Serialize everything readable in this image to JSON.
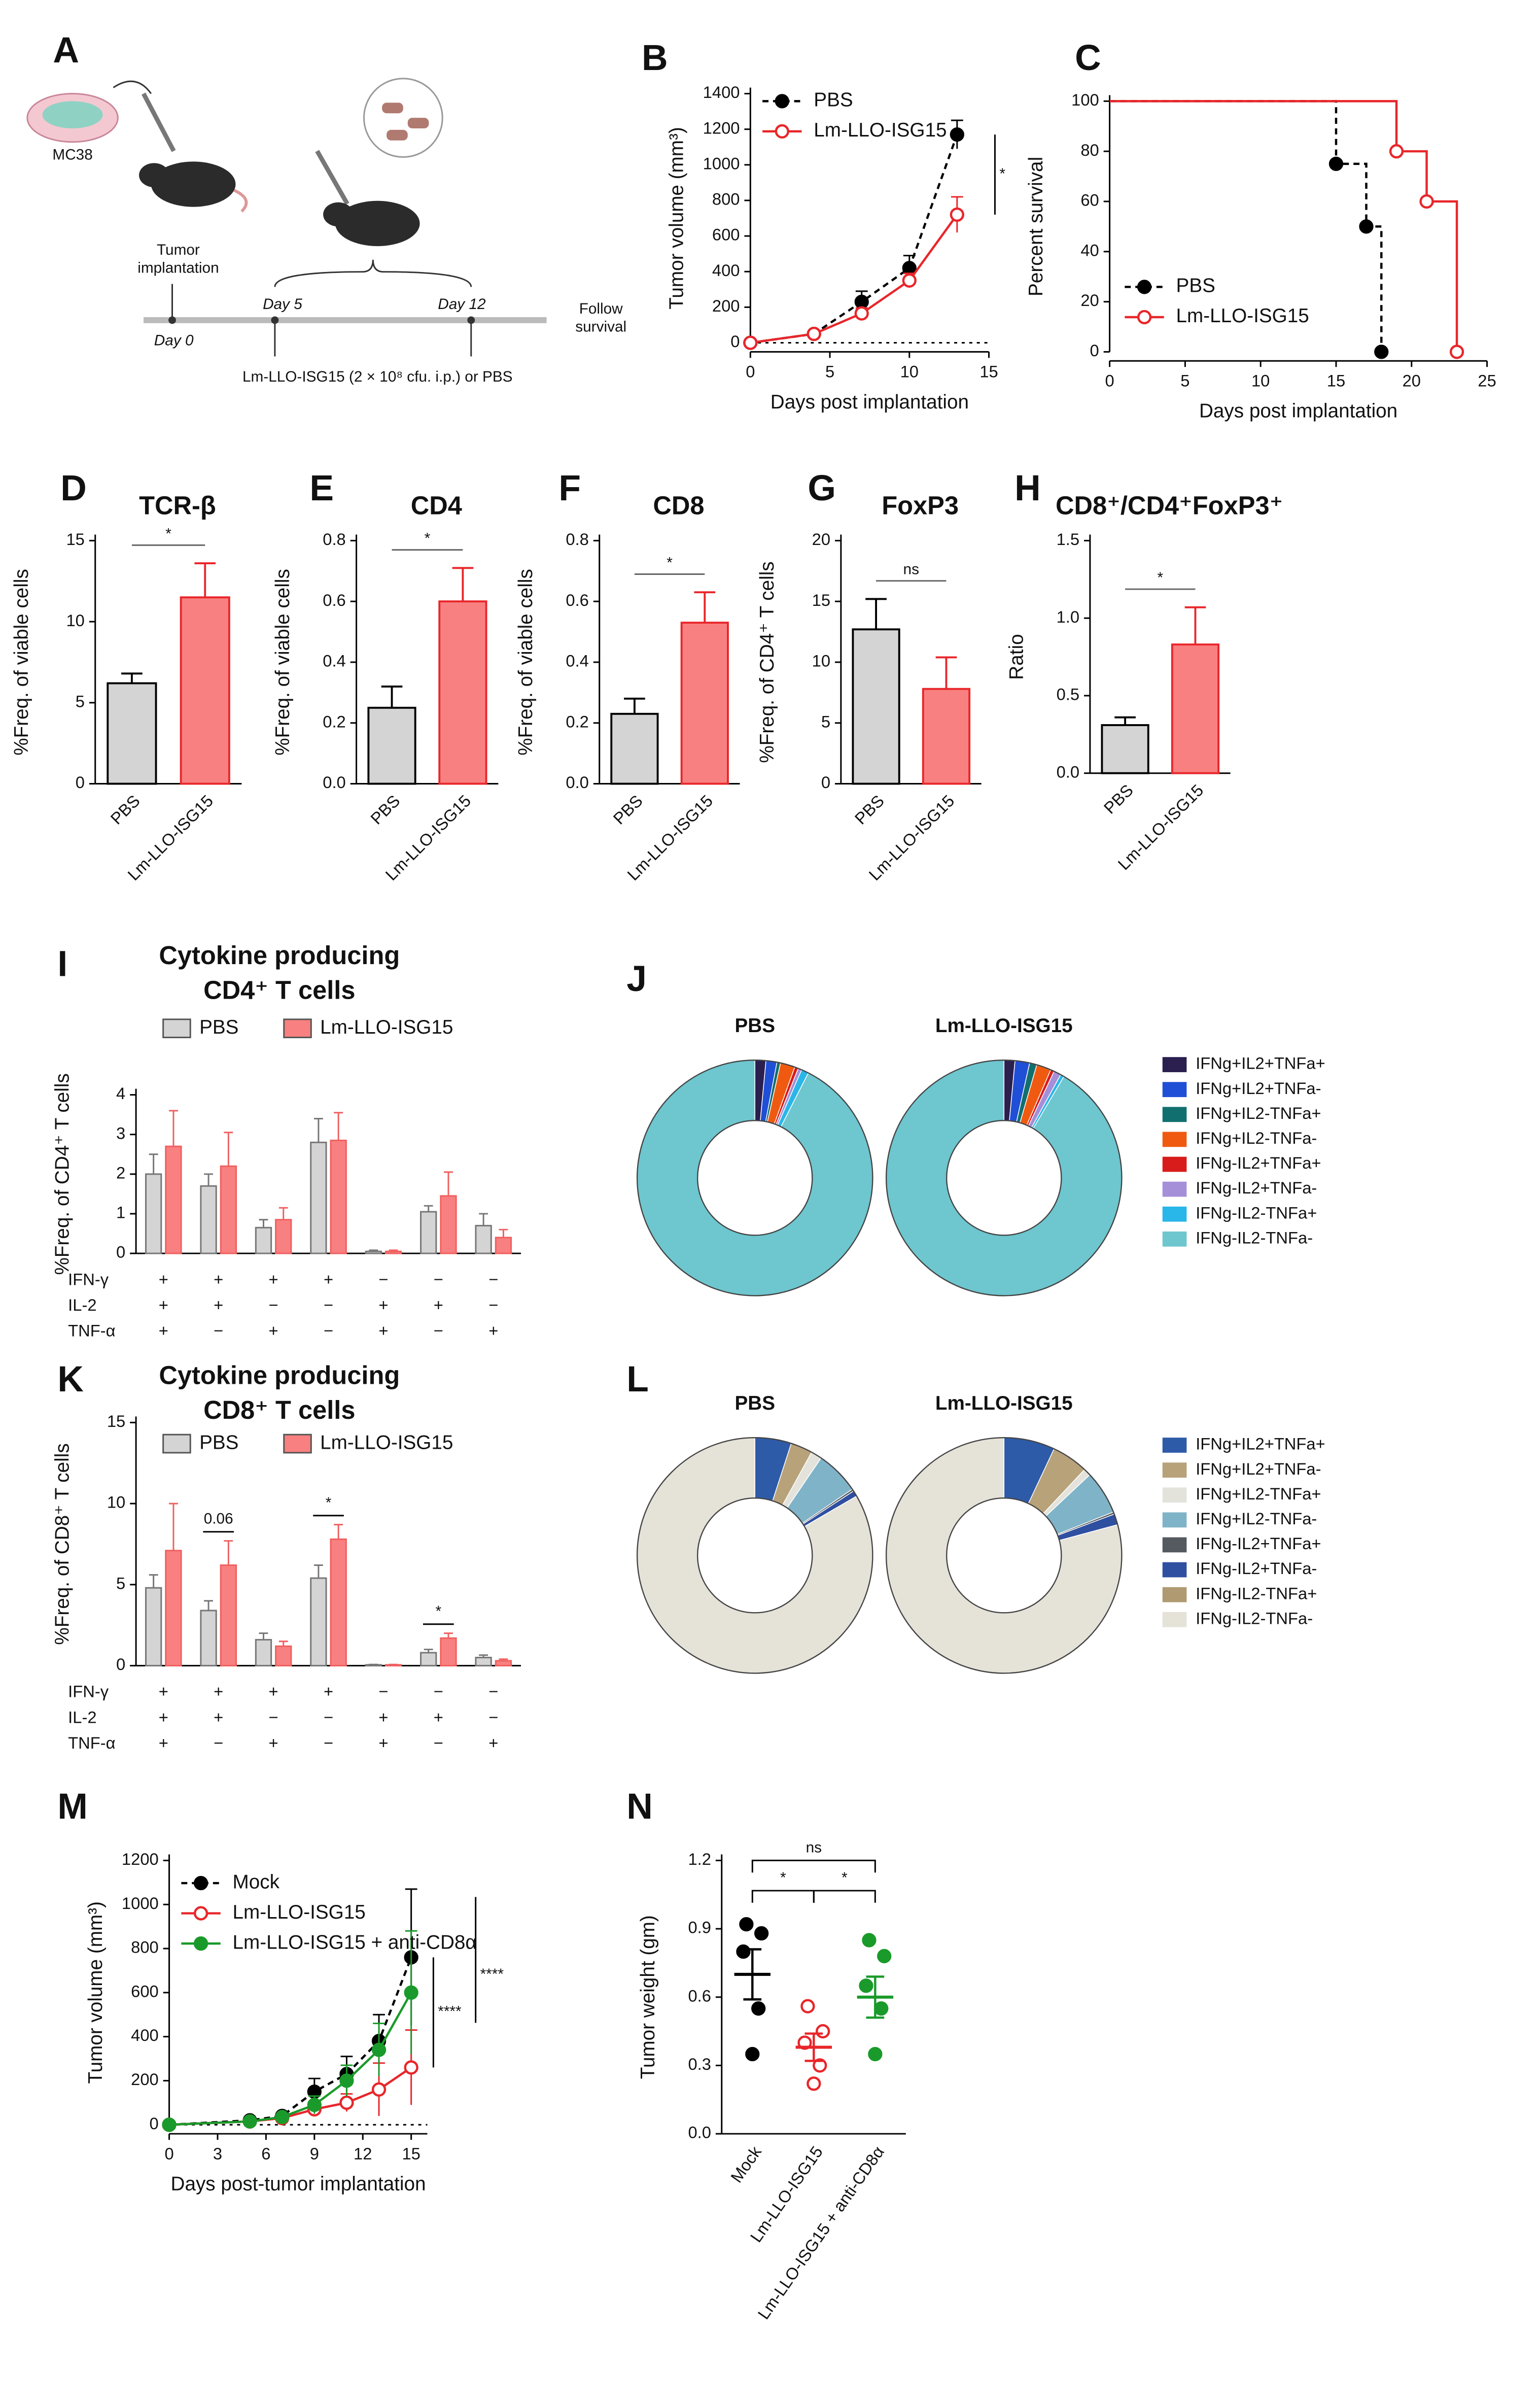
{
  "schematic": {
    "panel": "A",
    "cell_line": "MC38",
    "implant_label": [
      "Tumor",
      "implantation"
    ],
    "timepoints": [
      "Day 0",
      "Day 5",
      "Day 12"
    ],
    "follow": [
      "Follow",
      "survival"
    ],
    "treatment": "Lm-LLO-ISG15 (2 × 10⁸ cfu. i.p.) or PBS"
  },
  "chart_data": [
    {
      "type": "line",
      "panel": "B",
      "xlabel": "Days post implantation",
      "ylabel": "Tumor volume (mm³)",
      "x": [
        0,
        4,
        7,
        10,
        13
      ],
      "xlim": [
        0,
        15
      ],
      "xticks": [
        0,
        5,
        10,
        15
      ],
      "ylim": [
        0,
        1400
      ],
      "yticks": [
        0,
        200,
        400,
        600,
        800,
        1000,
        1200,
        1400
      ],
      "series": [
        {
          "name": "PBS",
          "color": "#000000",
          "line_style": "dashed",
          "marker_fill": "filled",
          "values": [
            0,
            50,
            230,
            420,
            1170
          ],
          "errors": [
            10,
            10,
            60,
            70,
            80
          ]
        },
        {
          "name": "Lm-LLO-ISG15",
          "color": "#e8262a",
          "line_style": "solid",
          "marker_fill": "open",
          "values": [
            0,
            50,
            165,
            350,
            720
          ],
          "errors": [
            10,
            10,
            30,
            40,
            100
          ]
        }
      ],
      "significance": [
        "*"
      ]
    },
    {
      "type": "step",
      "panel": "C",
      "xlabel": "Days post implantation",
      "ylabel": "Percent survival",
      "xlim": [
        0,
        25
      ],
      "xticks": [
        0,
        5,
        10,
        15,
        20,
        25
      ],
      "ylim": [
        0,
        100
      ],
      "yticks": [
        0,
        20,
        40,
        60,
        80,
        100
      ],
      "series": [
        {
          "name": "PBS",
          "color": "#000000",
          "line_style": "dashed",
          "marker_fill": "filled",
          "x": [
            0,
            15,
            17,
            18
          ],
          "values": [
            100,
            75,
            50,
            0
          ]
        },
        {
          "name": "Lm-LLO-ISG15",
          "color": "#e8262a",
          "line_style": "solid",
          "marker_fill": "open",
          "x": [
            0,
            19,
            21,
            23
          ],
          "values": [
            100,
            80,
            60,
            0
          ]
        }
      ]
    },
    {
      "type": "bar",
      "panel": "D",
      "title": "TCR-β",
      "ylabel": "%Freq. of viable cells",
      "categories": [
        "PBS",
        "Lm-LLO-ISG15"
      ],
      "values": [
        6.2,
        11.5
      ],
      "errors": [
        0.6,
        2.1
      ],
      "colors": [
        "#d4d4d4",
        "#f98080"
      ],
      "ylim": [
        0,
        15
      ],
      "yticks": [
        0,
        5,
        10,
        15
      ],
      "significance": "*"
    },
    {
      "type": "bar",
      "panel": "E",
      "title": "CD4",
      "ylabel": "%Freq. of viable cells",
      "categories": [
        "PBS",
        "Lm-LLO-ISG15"
      ],
      "values": [
        0.25,
        0.6
      ],
      "errors": [
        0.07,
        0.11
      ],
      "colors": [
        "#d4d4d4",
        "#f98080"
      ],
      "ylim": [
        0,
        0.8
      ],
      "yticks": [
        {
          "value": 0,
          "label": "0.0"
        },
        0.2,
        0.4,
        0.6,
        0.8
      ],
      "significance": "*"
    },
    {
      "type": "bar",
      "panel": "F",
      "title": "CD8",
      "ylabel": "%Freq. of viable cells",
      "categories": [
        "PBS",
        "Lm-LLO-ISG15"
      ],
      "values": [
        0.23,
        0.53
      ],
      "errors": [
        0.05,
        0.1
      ],
      "colors": [
        "#d4d4d4",
        "#f98080"
      ],
      "ylim": [
        0,
        0.8
      ],
      "yticks": [
        {
          "value": 0,
          "label": "0.0"
        },
        0.2,
        0.4,
        0.6,
        0.8
      ],
      "significance": "*"
    },
    {
      "type": "bar",
      "panel": "G",
      "title": "FoxP3",
      "ylabel": "%Freq. of CD4⁺ T cells",
      "categories": [
        "PBS",
        "Lm-LLO-ISG15"
      ],
      "values": [
        12.7,
        7.8
      ],
      "errors": [
        2.5,
        2.6
      ],
      "colors": [
        "#d4d4d4",
        "#f98080"
      ],
      "ylim": [
        0,
        20
      ],
      "yticks": [
        0,
        5,
        10,
        15,
        20
      ],
      "significance": "ns"
    },
    {
      "type": "bar",
      "panel": "H",
      "title": "CD8⁺/CD4⁺FoxP3⁺",
      "ylabel": "Ratio",
      "categories": [
        "PBS",
        "Lm-LLO-ISG15"
      ],
      "values": [
        0.31,
        0.83
      ],
      "errors": [
        0.05,
        0.24
      ],
      "colors": [
        "#d4d4d4",
        "#f98080"
      ],
      "ylim": [
        0,
        1.5
      ],
      "yticks": [
        {
          "value": 0,
          "label": "0.0"
        },
        0.5,
        {
          "value": 1,
          "label": "1.0"
        },
        1.5
      ],
      "significance": "*"
    },
    {
      "type": "grouped_bar",
      "panel": "I",
      "title": [
        "Cytokine producing",
        "CD4⁺ T cells"
      ],
      "ylabel": "%Freq. of CD4⁺ T cells",
      "ylim": [
        0,
        4
      ],
      "yticks": [
        0,
        1,
        2,
        3,
        4
      ],
      "rows": [
        {
          "name": "IFN-γ",
          "signs": [
            "+",
            "+",
            "+",
            "+",
            "−",
            "−",
            "−"
          ]
        },
        {
          "name": "IL-2",
          "signs": [
            "+",
            "+",
            "−",
            "−",
            "+",
            "+",
            "−"
          ]
        },
        {
          "name": "TNF-α",
          "signs": [
            "+",
            "−",
            "+",
            "−",
            "+",
            "−",
            "+"
          ]
        }
      ],
      "series": [
        {
          "name": "PBS",
          "color": "#d4d4d4",
          "values": [
            2.0,
            1.7,
            0.65,
            2.8,
            0.05,
            1.05,
            0.7
          ],
          "errors": [
            0.5,
            0.3,
            0.2,
            0.6,
            0.03,
            0.15,
            0.3
          ]
        },
        {
          "name": "Lm-LLO-ISG15",
          "color": "#f98080",
          "values": [
            2.7,
            2.2,
            0.85,
            2.85,
            0.05,
            1.45,
            0.4
          ],
          "errors": [
            0.9,
            0.85,
            0.3,
            0.7,
            0.03,
            0.6,
            0.2
          ]
        }
      ],
      "group_labels": [
        null,
        null,
        null,
        null,
        null,
        null,
        null
      ]
    },
    {
      "type": "donut",
      "panel": "J",
      "categories": [
        "IFNg+IL2+TNFa+",
        "IFNg+IL2+TNFa-",
        "IFNg+IL2-TNFa+",
        "IFNg+IL2-TNFa-",
        "IFNg-IL2+TNFa+",
        "IFNg-IL2+TNFa-",
        "IFNg-IL2-TNFa+",
        "IFNg-IL2-TNFa-"
      ],
      "colors": [
        "#2a1f4f",
        "#1f4fd6",
        "#11706f",
        "#f05a10",
        "#d81b1b",
        "#a58fd8",
        "#29b6e8",
        "#6ec6cf"
      ],
      "series": [
        {
          "name": "PBS",
          "values": [
            1.5,
            1.5,
            0.5,
            2,
            0.5,
            0.5,
            1,
            92.5
          ]
        },
        {
          "name": "Lm-LLO-ISG15",
          "values": [
            1.5,
            2,
            1,
            2,
            0.5,
            1,
            0.5,
            91.5
          ]
        }
      ]
    },
    {
      "type": "grouped_bar",
      "panel": "K",
      "title": [
        "Cytokine producing",
        "CD8⁺ T cells"
      ],
      "ylabel": "%Freq. of CD8⁺ T cells",
      "ylim": [
        0,
        15
      ],
      "yticks": [
        0,
        5,
        10,
        15
      ],
      "rows": [
        {
          "name": "IFN-γ",
          "signs": [
            "+",
            "+",
            "+",
            "+",
            "−",
            "−",
            "−"
          ]
        },
        {
          "name": "IL-2",
          "signs": [
            "+",
            "+",
            "−",
            "−",
            "+",
            "+",
            "−"
          ]
        },
        {
          "name": "TNF-α",
          "signs": [
            "+",
            "−",
            "+",
            "−",
            "+",
            "−",
            "+"
          ]
        }
      ],
      "series": [
        {
          "name": "PBS",
          "color": "#d4d4d4",
          "values": [
            4.8,
            3.4,
            1.6,
            5.4,
            0.05,
            0.8,
            0.5
          ],
          "errors": [
            0.8,
            0.6,
            0.4,
            0.8,
            0.02,
            0.2,
            0.15
          ]
        },
        {
          "name": "Lm-LLO-ISG15",
          "color": "#f98080",
          "values": [
            7.1,
            6.2,
            1.2,
            7.8,
            0.05,
            1.7,
            0.3
          ],
          "errors": [
            2.9,
            1.5,
            0.3,
            0.9,
            0.02,
            0.3,
            0.1
          ]
        }
      ],
      "group_labels": [
        null,
        "0.06",
        null,
        "*",
        null,
        "*",
        null
      ]
    },
    {
      "type": "donut",
      "panel": "L",
      "categories": [
        "IFNg+IL2+TNFa+",
        "IFNg+IL2+TNFa-",
        "IFNg+IL2-TNFa+",
        "IFNg+IL2-TNFa-",
        "IFNg-IL2+TNFa+",
        "IFNg-IL2+TNFa-",
        "IFNg-IL2-TNFa+",
        "IFNg-IL2-TNFa-"
      ],
      "colors": [
        "#2e5ba8",
        "#b8a27a",
        "#e3e3dc",
        "#7fb3c8",
        "#555a60",
        "#2f4fa0",
        "#b09a72",
        "#e5e2d8"
      ],
      "series": [
        {
          "name": "PBS",
          "values": [
            5,
            3,
            1.5,
            6,
            0.3,
            0.8,
            0,
            83.4
          ]
        },
        {
          "name": "Lm-LLO-ISG15",
          "values": [
            7,
            5,
            1,
            6,
            0.3,
            1.5,
            0,
            79.2
          ]
        }
      ]
    },
    {
      "type": "line",
      "panel": "M",
      "xlabel": "Days post-tumor implantation",
      "ylabel": "Tumor volume (mm³)",
      "x": [
        0,
        5,
        7,
        9,
        11,
        13,
        15
      ],
      "xlim": [
        0,
        16
      ],
      "xticks": [
        0,
        3,
        6,
        9,
        12,
        15
      ],
      "ylim": [
        0,
        1200
      ],
      "yticks": [
        0,
        200,
        400,
        600,
        800,
        1000,
        1200
      ],
      "series": [
        {
          "name": "Mock",
          "color": "#000000",
          "line_style": "dashed",
          "marker_fill": "filled",
          "values": [
            0,
            20,
            40,
            150,
            230,
            380,
            760
          ],
          "errors": [
            5,
            10,
            10,
            60,
            80,
            120,
            310
          ]
        },
        {
          "name": "Lm-LLO-ISG15",
          "color": "#e8262a",
          "line_style": "solid",
          "marker_fill": "open",
          "values": [
            0,
            15,
            30,
            70,
            100,
            160,
            260
          ],
          "errors": [
            5,
            5,
            10,
            30,
            40,
            120,
            170
          ]
        },
        {
          "name": "Lm-LLO-ISG15 + anti-CD8α",
          "color": "#1a9a2a",
          "line_style": "solid",
          "marker_fill": "filled",
          "values": [
            0,
            15,
            35,
            90,
            200,
            340,
            600
          ],
          "errors": [
            5,
            5,
            10,
            40,
            70,
            120,
            280
          ]
        }
      ],
      "significance": [
        "****",
        "****"
      ]
    },
    {
      "type": "dot",
      "panel": "N",
      "ylabel": "Tumor weight (gm)",
      "categories": [
        "Mock",
        "Lm-LLO-ISG15",
        "Lm-LLO-ISG15 + anti-CD8α"
      ],
      "colors": [
        "#000000",
        "#e8262a",
        "#1a9a2a"
      ],
      "marker_fill": [
        "filled",
        "open",
        "filled"
      ],
      "points": [
        [
          0.92,
          0.88,
          0.8,
          0.55,
          0.35
        ],
        [
          0.56,
          0.45,
          0.4,
          0.3,
          0.22
        ],
        [
          0.85,
          0.78,
          0.65,
          0.55,
          0.35
        ]
      ],
      "means": [
        0.7,
        0.38,
        0.6
      ],
      "sems": [
        0.11,
        0.06,
        0.09
      ],
      "ylim": [
        0,
        1.2
      ],
      "yticks": [
        {
          "value": 0,
          "label": "0.0"
        },
        0.3,
        0.6,
        0.9,
        {
          "value": 1.2,
          "label": "1.2"
        }
      ],
      "significance": [
        "ns",
        "*",
        "*"
      ]
    }
  ]
}
